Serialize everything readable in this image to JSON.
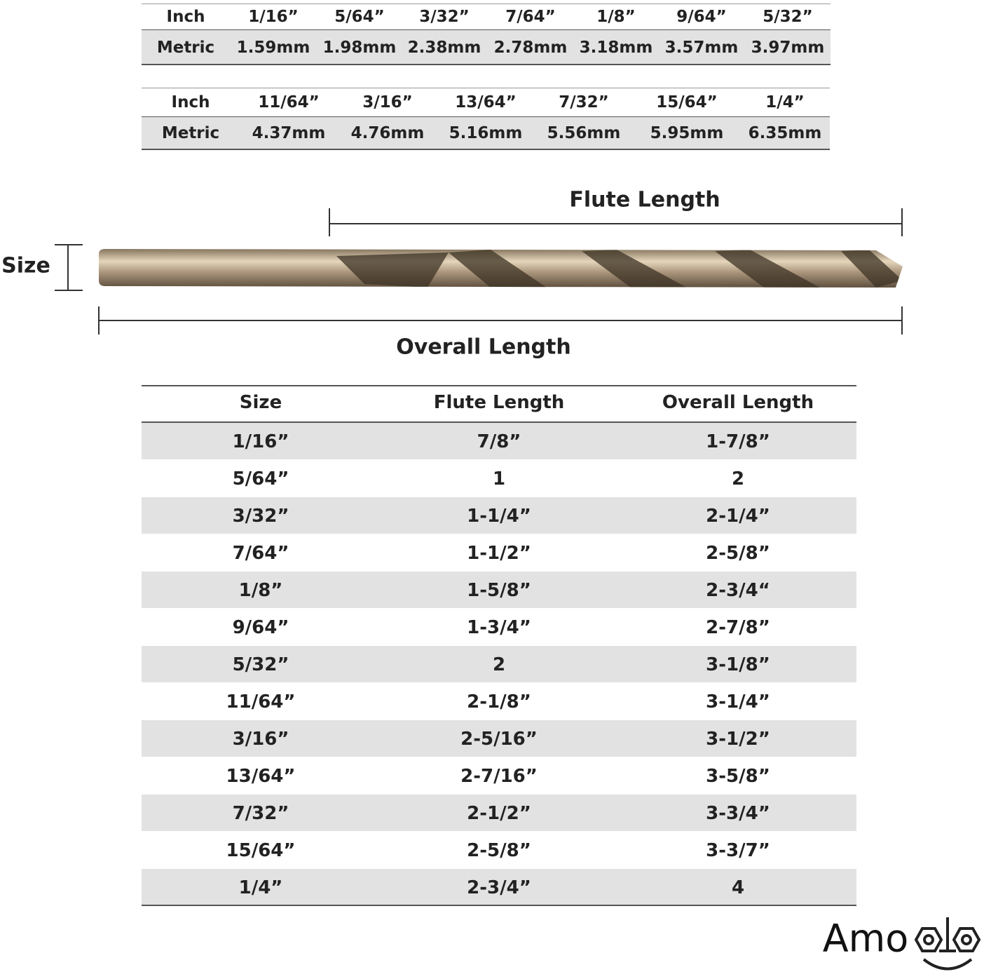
{
  "conversion_tables": [
    {
      "rows": [
        [
          "Inch",
          "1/16”",
          "5/64”",
          "3/32”",
          "7/64”",
          "1/8”",
          "9/64”",
          "5/32”"
        ],
        [
          "Metric",
          "1.59mm",
          "1.98mm",
          "2.38mm",
          "2.78mm",
          "3.18mm",
          "3.57mm",
          "3.97mm"
        ]
      ]
    },
    {
      "rows": [
        [
          "Inch",
          "11/64”",
          "3/16”",
          "13/64”",
          "7/32”",
          "15/64”",
          "1/4”"
        ],
        [
          "Metric",
          "4.37mm",
          "4.76mm",
          "5.16mm",
          "5.56mm",
          "5.95mm",
          "6.35mm"
        ]
      ]
    }
  ],
  "diagram": {
    "size_label": "Size",
    "flute_label": "Flute Length",
    "overall_label": "Overall Length"
  },
  "size_table": {
    "header": [
      "Size",
      "Flute Length",
      "Overall Length"
    ],
    "rows": [
      [
        "1/16”",
        "7/8”",
        "1-7/8”"
      ],
      [
        "5/64”",
        "1",
        "2"
      ],
      [
        "3/32”",
        "1-1/4”",
        "2-1/4”"
      ],
      [
        "7/64”",
        "1-1/2”",
        "2-5/8”"
      ],
      [
        "1/8”",
        "1-5/8”",
        "2-3/4“"
      ],
      [
        "9/64”",
        "1-3/4”",
        "2-7/8”"
      ],
      [
        "5/32”",
        "2",
        "3-1/8”"
      ],
      [
        "11/64”",
        "2-1/8”",
        "3-1/4”"
      ],
      [
        "3/16”",
        "2-5/16”",
        "3-1/2”"
      ],
      [
        "13/64”",
        "2-7/16”",
        "3-5/8”"
      ],
      [
        "7/32”",
        "2-1/2”",
        "3-3/4”"
      ],
      [
        "15/64”",
        "2-5/8”",
        "3-3/7”"
      ],
      [
        "1/4”",
        "2-3/4”",
        "4"
      ]
    ]
  },
  "logo": {
    "text": "Amo"
  }
}
